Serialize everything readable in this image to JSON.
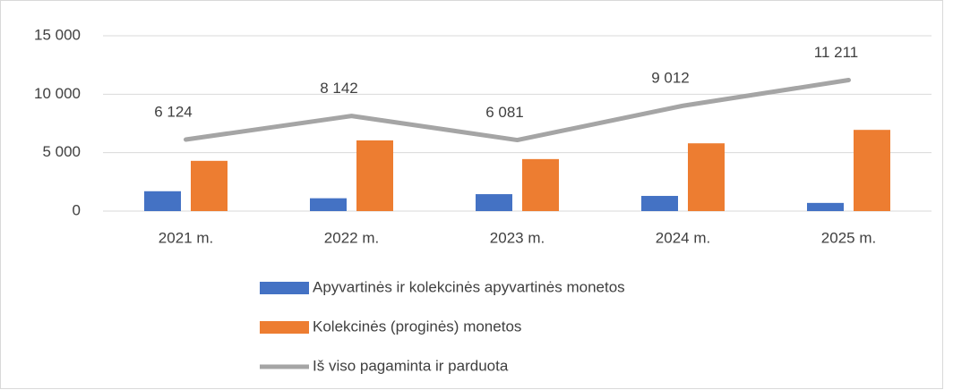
{
  "chart_data": {
    "type": "bar",
    "categories": [
      "2021 m.",
      "2022 m.",
      "2023 m.",
      "2024 m.",
      "2025 m."
    ],
    "series": [
      {
        "name": "Apyvartinės ir kolekcinės apyvartinės monetos",
        "color": "#4472c4",
        "values": [
          1700,
          1100,
          1450,
          1300,
          700
        ]
      },
      {
        "name": "Kolekcinės (proginės) monetos",
        "color": "#ed7d31",
        "values": [
          4300,
          6050,
          4450,
          5800,
          6950
        ]
      },
      {
        "name": "Iš viso pagaminta ir parduota",
        "type": "line",
        "color": "#a5a5a5",
        "values": [
          6124,
          8142,
          6081,
          9012,
          11211
        ],
        "value_labels": [
          "6 124",
          "8 142",
          "6 081",
          "9 012",
          "11 211"
        ]
      }
    ],
    "ylim": [
      0,
      15000
    ],
    "yticks": [
      0,
      {
        "value": 5000,
        "label": "5 000"
      },
      {
        "value": 10000,
        "label": "10 000"
      },
      {
        "value": 15000,
        "label": "15 000"
      }
    ],
    "grid": true,
    "legend": "bottom"
  }
}
